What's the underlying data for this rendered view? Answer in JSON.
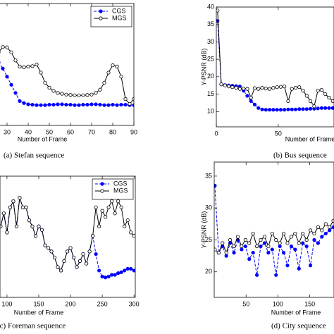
{
  "chart_data": [
    {
      "type": "line",
      "caption": "(a) Stefan sequence",
      "xlabel": "Number of Frame",
      "x": [
        24,
        26,
        28,
        30,
        32,
        34,
        36,
        38,
        40,
        42,
        44,
        46,
        48,
        50,
        52,
        54,
        56,
        58,
        60,
        62,
        64,
        66,
        68,
        70,
        72,
        74,
        76,
        78,
        80,
        82,
        84,
        86,
        88,
        90
      ],
      "xlim": [
        23,
        90
      ],
      "xticks": [
        30,
        40,
        50,
        60,
        70,
        80,
        90
      ],
      "ylim": [
        10,
        40
      ],
      "legend": "upper right",
      "series": [
        {
          "name": "CGS",
          "color": "#0000ff",
          "dashed": true,
          "marker": "filled",
          "values": [
            26,
            25.5,
            24,
            22,
            20,
            18,
            16,
            15.5,
            15.2,
            15.1,
            15,
            15,
            15,
            15.1,
            15.1,
            15.2,
            15.2,
            15.1,
            15.1,
            15,
            15,
            15.1,
            15.1,
            15.2,
            15.2,
            15.1,
            15,
            15,
            15.1,
            15,
            15.1,
            15.1,
            15,
            15
          ]
        },
        {
          "name": "MGS",
          "color": "#000000",
          "dashed": false,
          "marker": "open",
          "values": [
            27.5,
            28,
            29.3,
            29.2,
            28,
            26,
            24.5,
            24.3,
            24.5,
            24.6,
            25,
            23,
            20.5,
            19.3,
            18.5,
            18,
            17.8,
            17.6,
            17.5,
            17.4,
            17.4,
            17.4,
            17.5,
            17.6,
            18,
            18.8,
            20.5,
            23,
            24.8,
            24.5,
            22,
            16.5,
            15.3,
            16.5
          ]
        }
      ]
    },
    {
      "type": "line",
      "caption": "(b) Bus sequence",
      "xlabel": "Number of Frame",
      "ylabel": "Y-PSNR (dB)",
      "x": [
        1,
        4,
        7,
        10,
        13,
        16,
        19,
        22,
        25,
        28,
        31,
        34,
        37,
        40,
        43,
        46,
        49,
        52,
        55,
        58,
        61,
        64,
        67,
        70,
        73,
        76,
        79,
        82,
        85,
        88,
        91,
        94
      ],
      "xlim": [
        0,
        95
      ],
      "xticks": [
        0,
        50
      ],
      "ylim": [
        5.6,
        40
      ],
      "yticks": [
        10,
        15,
        20,
        25,
        30,
        35,
        40
      ],
      "legend": false,
      "series": [
        {
          "name": "CGS",
          "color": "#0000ff",
          "dashed": true,
          "marker": "filled",
          "values": [
            36,
            17.8,
            17.6,
            17.5,
            17.4,
            17.3,
            17.2,
            16,
            14.5,
            13,
            12,
            11,
            10.6,
            10.5,
            10.5,
            10.5,
            10.5,
            10.5,
            10.5,
            10.6,
            10.6,
            10.6,
            10.7,
            10.7,
            10.7,
            10.8,
            10.8,
            10.9,
            11,
            11,
            11,
            11
          ]
        },
        {
          "name": "MGS",
          "color": "#000000",
          "dashed": false,
          "marker": "open",
          "values": [
            39,
            17.8,
            17.5,
            17.2,
            17,
            16.8,
            16.5,
            16.6,
            16.5,
            14,
            16.7,
            16.5,
            16.8,
            16.6,
            16.5,
            16.8,
            17,
            17.1,
            17.2,
            13,
            16.5,
            16.8,
            17,
            16,
            14.5,
            13,
            11.5,
            16,
            16.2,
            15,
            14,
            13
          ]
        }
      ]
    },
    {
      "type": "line",
      "caption": "(c) Foreman sequence",
      "xlabel": "Number of Frame",
      "x": [
        90,
        95,
        100,
        105,
        110,
        115,
        120,
        125,
        130,
        135,
        140,
        145,
        150,
        155,
        160,
        165,
        170,
        175,
        180,
        185,
        190,
        195,
        200,
        205,
        210,
        215,
        220,
        225,
        230,
        235,
        240,
        245,
        250,
        255,
        260,
        265,
        270,
        275,
        280,
        285,
        290,
        295,
        300
      ],
      "xlim": [
        89,
        302
      ],
      "xticks": [
        100,
        150,
        200,
        250,
        300
      ],
      "ylim": [
        26,
        40
      ],
      "legend": "upper right",
      "series": [
        {
          "name": "CGS",
          "color": "#0000ff",
          "dashed": true,
          "marker": "filled",
          "values": [
            34.2,
            35.7,
            33.5,
            36.4,
            37.1,
            34.2,
            37.5,
            36.4,
            36.4,
            34.9,
            34.2,
            33.1,
            34.2,
            33.8,
            32.0,
            31.7,
            31.3,
            30.6,
            29.5,
            29.1,
            30.2,
            31.3,
            31.7,
            30.6,
            29.5,
            30.2,
            31.0,
            29.9,
            31.3,
            33.1,
            31.0,
            29.1,
            28.4,
            28.3,
            28.4,
            28.6,
            28.6,
            28.8,
            28.9,
            29.1,
            29.3,
            29.3,
            29.1
          ]
        },
        {
          "name": "MGS",
          "color": "#000000",
          "dashed": false,
          "marker": "open",
          "values": [
            34.2,
            35.7,
            33.5,
            36.4,
            37.1,
            34.2,
            37.5,
            36.4,
            36.4,
            34.9,
            34.2,
            33.1,
            34.2,
            33.8,
            32.0,
            31.7,
            31.3,
            30.6,
            29.5,
            29.1,
            30.2,
            31.3,
            31.7,
            30.6,
            29.5,
            30.2,
            31.0,
            29.9,
            31.3,
            33.1,
            36.4,
            34.2,
            36.0,
            35.3,
            36.4,
            37.1,
            35.7,
            37.1,
            36.4,
            34.2,
            34.9,
            33.5,
            33.1
          ]
        }
      ]
    },
    {
      "type": "line",
      "caption": "(d) City sequence",
      "xlabel": "Number of Frame",
      "ylabel": "Y-PSNR (dB)",
      "x": [
        1,
        7,
        13,
        19,
        25,
        31,
        37,
        43,
        49,
        55,
        61,
        67,
        73,
        79,
        85,
        91,
        97,
        103,
        109,
        115,
        121,
        127,
        133,
        139,
        145,
        151,
        157,
        163,
        169,
        175,
        181,
        187
      ],
      "xlim": [
        0,
        188
      ],
      "xticks": [
        50,
        100,
        150
      ],
      "ylim": [
        16,
        37.2
      ],
      "yticks": [
        20,
        25,
        30,
        35
      ],
      "legend": false,
      "series": [
        {
          "name": "CGS",
          "color": "#0000ff",
          "dashed": true,
          "marker": "filled",
          "values": [
            33.5,
            23,
            24,
            22.5,
            24.5,
            23,
            25,
            23.5,
            24,
            22,
            23,
            19.5,
            24,
            24.5,
            23,
            23.5,
            19.5,
            24,
            23,
            21,
            24,
            23.5,
            20.5,
            24.5,
            24,
            21,
            25,
            24.5,
            25.5,
            26,
            26.5,
            27
          ]
        },
        {
          "name": "MGS",
          "color": "#000000",
          "dashed": false,
          "marker": "open",
          "values": [
            23.5,
            23,
            24.5,
            23,
            25,
            24,
            25.5,
            24,
            25,
            24.5,
            26,
            24,
            25,
            25.5,
            24,
            26,
            25,
            24.5,
            26,
            24.5,
            25.5,
            26,
            24.5,
            26,
            25,
            26.5,
            26,
            27,
            26.5,
            27.5,
            27,
            28
          ]
        }
      ]
    }
  ]
}
